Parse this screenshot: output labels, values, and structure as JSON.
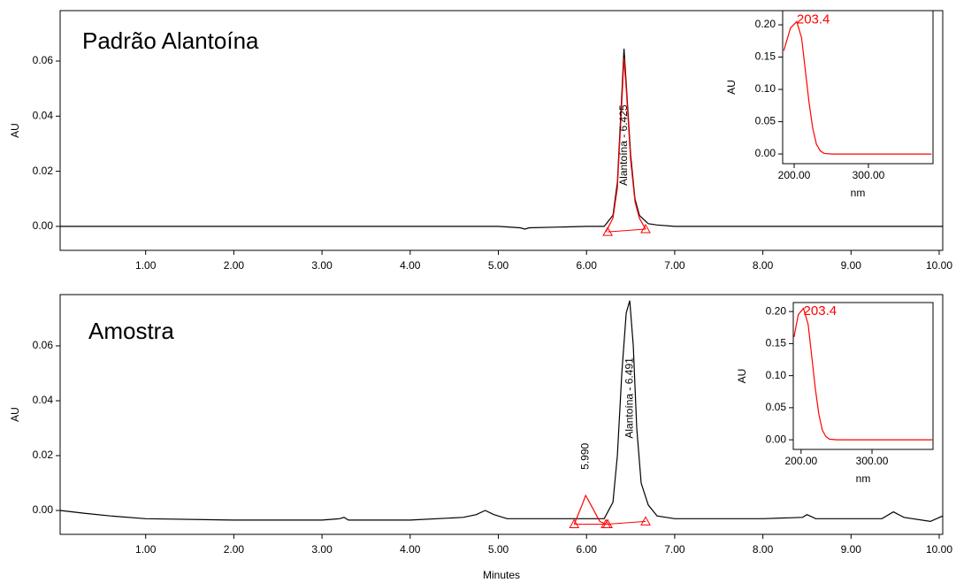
{
  "chart_data": [
    {
      "type": "line",
      "title": "Padrão Alantoína",
      "y_label": "AU",
      "xlim": [
        0.03,
        10.04
      ],
      "ylim": [
        -0.0087,
        0.0783
      ],
      "xticks": [
        {
          "value": 1,
          "label": "1.00"
        },
        {
          "value": 2,
          "label": "2.00"
        },
        {
          "value": 3,
          "label": "3.00"
        },
        {
          "value": 4,
          "label": "4.00"
        },
        {
          "value": 5,
          "label": "5.00"
        },
        {
          "value": 6,
          "label": "6.00"
        },
        {
          "value": 7,
          "label": "7.00"
        },
        {
          "value": 8,
          "label": "8.00"
        },
        {
          "value": 9,
          "label": "9.00"
        },
        {
          "value": 10,
          "label": "10.00"
        }
      ],
      "yticks": [
        {
          "value": 0,
          "label": "0.00"
        },
        {
          "value": 0.02,
          "label": "0.02"
        },
        {
          "value": 0.04,
          "label": "0.04"
        },
        {
          "value": 0.06,
          "label": "0.06"
        }
      ],
      "series": [
        {
          "color": "#000000",
          "x": [
            0.03,
            0.5,
            1,
            2,
            3,
            4,
            5,
            5.25,
            5.3,
            5.35,
            6,
            6.2,
            6.3,
            6.35,
            6.4,
            6.425,
            6.45,
            6.5,
            6.55,
            6.6,
            6.7,
            6.8,
            7,
            8,
            9,
            10.04
          ],
          "values": [
            0,
            0,
            0,
            0,
            0,
            0,
            0,
            -0.0005,
            -0.001,
            -0.0005,
            0,
            0,
            0.004,
            0.016,
            0.048,
            0.0645,
            0.052,
            0.026,
            0.01,
            0.004,
            0.001,
            0.0005,
            0,
            0,
            0,
            0
          ]
        },
        {
          "color": "#ff0000",
          "x": [
            6.22,
            6.3,
            6.35,
            6.4,
            6.425,
            6.45,
            6.5,
            6.55,
            6.6,
            6.67
          ],
          "values": [
            -0.002,
            0.003,
            0.014,
            0.045,
            0.061,
            0.05,
            0.024,
            0.009,
            0.003,
            -0.001
          ]
        }
      ],
      "markers": {
        "color": "#ff0000",
        "x": [
          6.24,
          6.67
        ],
        "values": [
          -0.002,
          -0.001
        ]
      },
      "annotations": [
        {
          "text": "Alantoína - 6.425",
          "x": 6.425
        }
      ]
    },
    {
      "type": "line",
      "title": "Amostra",
      "y_label": "AU",
      "x_label": "Minutes",
      "xlim": [
        0.03,
        10.04
      ],
      "ylim": [
        -0.0087,
        0.0787
      ],
      "xticks": [
        {
          "value": 1,
          "label": "1.00"
        },
        {
          "value": 2,
          "label": "2.00"
        },
        {
          "value": 3,
          "label": "3.00"
        },
        {
          "value": 4,
          "label": "4.00"
        },
        {
          "value": 5,
          "label": "5.00"
        },
        {
          "value": 6,
          "label": "6.00"
        },
        {
          "value": 7,
          "label": "7.00"
        },
        {
          "value": 8,
          "label": "8.00"
        },
        {
          "value": 9,
          "label": "9.00"
        },
        {
          "value": 10,
          "label": "10.00"
        }
      ],
      "yticks": [
        {
          "value": 0,
          "label": "0.00"
        },
        {
          "value": 0.02,
          "label": "0.02"
        },
        {
          "value": 0.04,
          "label": "0.04"
        },
        {
          "value": 0.06,
          "label": "0.06"
        }
      ],
      "series": [
        {
          "color": "#000000",
          "x": [
            0.03,
            0.3,
            0.6,
            1,
            2,
            3,
            3.2,
            3.25,
            3.3,
            4,
            4.6,
            4.75,
            4.85,
            4.95,
            5.1,
            5.8,
            6.2,
            6.3,
            6.35,
            6.4,
            6.45,
            6.49,
            6.53,
            6.57,
            6.62,
            6.7,
            6.8,
            7,
            8,
            8.45,
            8.5,
            8.6,
            9.35,
            9.48,
            9.6,
            9.9,
            10.04
          ],
          "values": [
            0,
            -0.001,
            -0.002,
            -0.003,
            -0.0035,
            -0.0035,
            -0.003,
            -0.0025,
            -0.0035,
            -0.0035,
            -0.0025,
            -0.0015,
            0,
            -0.0015,
            -0.003,
            -0.003,
            -0.003,
            0.003,
            0.02,
            0.05,
            0.072,
            0.0765,
            0.06,
            0.03,
            0.01,
            0.002,
            -0.002,
            -0.003,
            -0.003,
            -0.0025,
            -0.0015,
            -0.003,
            -0.003,
            -0.0005,
            -0.0025,
            -0.004,
            -0.002
          ]
        },
        {
          "color": "#ff0000",
          "x": [
            5.86,
            5.95,
            5.99,
            6.05,
            6.15,
            6.22
          ],
          "values": [
            -0.005,
            0.002,
            0.0055,
            0.002,
            -0.004,
            -0.005
          ]
        }
      ],
      "markers": {
        "color": "#ff0000",
        "x": [
          5.86,
          6.22,
          6.24,
          6.67
        ],
        "values": [
          -0.005,
          -0.005,
          -0.005,
          -0.004
        ]
      },
      "annotations": [
        {
          "text": "Alantoína - 6.491",
          "x": 6.491
        },
        {
          "text": "5.990",
          "x": 5.99
        }
      ]
    },
    {
      "type": "line",
      "y_label": "AU",
      "x_label": "nm",
      "xlim": [
        184.5,
        387
      ],
      "ylim": [
        -0.015,
        0.222
      ],
      "xticks": [
        {
          "value": 200,
          "label": "200.00"
        },
        {
          "value": 300,
          "label": "300.00"
        }
      ],
      "yticks": [
        {
          "value": 0,
          "label": "0.00"
        },
        {
          "value": 0.05,
          "label": "0.05"
        },
        {
          "value": 0.1,
          "label": "0.10"
        },
        {
          "value": 0.15,
          "label": "0.15"
        },
        {
          "value": 0.2,
          "label": "0.20"
        }
      ],
      "series": [
        {
          "color": "#ff0000",
          "x": [
            186,
            195,
            203.4,
            210,
            215,
            220,
            225,
            230,
            235,
            240,
            250,
            300,
            385
          ],
          "values": [
            0.16,
            0.195,
            0.205,
            0.18,
            0.13,
            0.08,
            0.04,
            0.015,
            0.005,
            0.001,
            0,
            0,
            0
          ]
        }
      ],
      "annotations": [
        {
          "text": "203.4",
          "x": 203.4
        }
      ]
    },
    {
      "type": "line",
      "y_label": "AU",
      "x_label": "nm",
      "xlim": [
        189,
        386
      ],
      "ylim": [
        -0.015,
        0.214
      ],
      "xticks": [
        {
          "value": 200,
          "label": "200.00"
        },
        {
          "value": 300,
          "label": "300.00"
        }
      ],
      "yticks": [
        {
          "value": 0,
          "label": "0.00"
        },
        {
          "value": 0.05,
          "label": "0.05"
        },
        {
          "value": 0.1,
          "label": "0.10"
        },
        {
          "value": 0.15,
          "label": "0.15"
        },
        {
          "value": 0.2,
          "label": "0.20"
        }
      ],
      "series": [
        {
          "color": "#ff0000",
          "x": [
            190,
            196,
            203.4,
            210,
            215,
            220,
            225,
            230,
            235,
            240,
            250,
            300,
            385
          ],
          "values": [
            0.16,
            0.195,
            0.205,
            0.18,
            0.13,
            0.08,
            0.04,
            0.015,
            0.005,
            0.001,
            0,
            0,
            0
          ]
        }
      ],
      "annotations": [
        {
          "text": "203.4",
          "x": 203.4
        }
      ]
    }
  ]
}
